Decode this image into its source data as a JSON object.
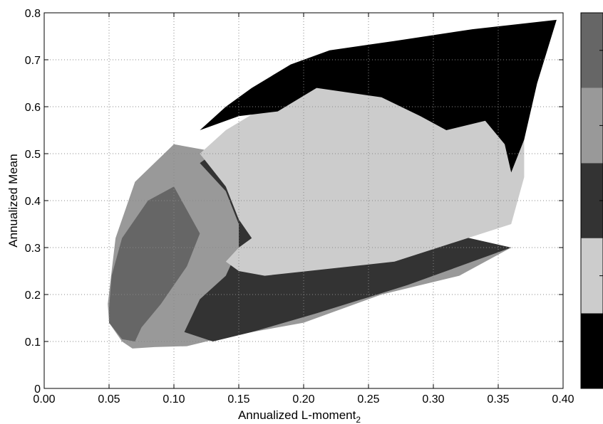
{
  "chart_data": {
    "type": "area",
    "xlabel": "Annualized L-moment",
    "xlabel_subscript": "2",
    "ylabel": "Annualized Mean",
    "xlim": [
      0.0,
      0.4
    ],
    "ylim": [
      0.0,
      0.8
    ],
    "x_ticks": [
      "0.00",
      "0.05",
      "0.10",
      "0.15",
      "0.20",
      "0.25",
      "0.30",
      "0.35",
      "0.40"
    ],
    "y_ticks": [
      "0",
      "0.1",
      "0.2",
      "0.3",
      "0.4",
      "0.5",
      "0.6",
      "0.7",
      "0.8"
    ],
    "grid": true,
    "colorbar": {
      "position": "right",
      "bands": [
        {
          "level": 1,
          "color": "#000000"
        },
        {
          "level": 2,
          "color": "#cccccc"
        },
        {
          "level": 3,
          "color": "#333333"
        },
        {
          "level": 4,
          "color": "#999999"
        },
        {
          "level": 5,
          "color": "#666666"
        }
      ],
      "tick_labels": [
        "",
        "",
        "",
        "",
        ""
      ]
    },
    "regions": [
      {
        "level": 4,
        "polygon": [
          [
            0.049,
            0.18
          ],
          [
            0.05,
            0.14
          ],
          [
            0.06,
            0.1
          ],
          [
            0.068,
            0.085
          ],
          [
            0.085,
            0.088
          ],
          [
            0.11,
            0.09
          ],
          [
            0.14,
            0.11
          ],
          [
            0.2,
            0.14
          ],
          [
            0.26,
            0.2
          ],
          [
            0.32,
            0.24
          ],
          [
            0.36,
            0.3
          ],
          [
            0.28,
            0.35
          ],
          [
            0.19,
            0.43
          ],
          [
            0.14,
            0.5
          ],
          [
            0.1,
            0.52
          ],
          [
            0.07,
            0.44
          ],
          [
            0.055,
            0.32
          ]
        ]
      },
      {
        "level": 5,
        "polygon": [
          [
            0.05,
            0.17
          ],
          [
            0.05,
            0.14
          ],
          [
            0.06,
            0.105
          ],
          [
            0.07,
            0.1
          ],
          [
            0.075,
            0.13
          ],
          [
            0.09,
            0.18
          ],
          [
            0.1,
            0.22
          ],
          [
            0.11,
            0.26
          ],
          [
            0.12,
            0.33
          ],
          [
            0.1,
            0.43
          ],
          [
            0.08,
            0.4
          ],
          [
            0.06,
            0.32
          ],
          [
            0.052,
            0.24
          ]
        ]
      },
      {
        "level": 3,
        "polygon": [
          [
            0.108,
            0.12
          ],
          [
            0.13,
            0.1
          ],
          [
            0.16,
            0.12
          ],
          [
            0.21,
            0.16
          ],
          [
            0.28,
            0.22
          ],
          [
            0.36,
            0.3
          ],
          [
            0.28,
            0.35
          ],
          [
            0.16,
            0.45
          ],
          [
            0.13,
            0.5
          ],
          [
            0.12,
            0.48
          ],
          [
            0.14,
            0.42
          ],
          [
            0.15,
            0.35
          ],
          [
            0.15,
            0.3
          ],
          [
            0.14,
            0.24
          ],
          [
            0.12,
            0.19
          ]
        ]
      },
      {
        "level": 2,
        "polygon": [
          [
            0.17,
            0.24
          ],
          [
            0.27,
            0.27
          ],
          [
            0.36,
            0.35
          ],
          [
            0.37,
            0.45
          ],
          [
            0.37,
            0.55
          ],
          [
            0.36,
            0.58
          ],
          [
            0.32,
            0.6
          ],
          [
            0.28,
            0.62
          ],
          [
            0.2,
            0.66
          ],
          [
            0.17,
            0.6
          ],
          [
            0.14,
            0.55
          ],
          [
            0.12,
            0.5
          ],
          [
            0.14,
            0.43
          ],
          [
            0.15,
            0.36
          ],
          [
            0.16,
            0.32
          ],
          [
            0.15,
            0.3
          ],
          [
            0.14,
            0.27
          ],
          [
            0.15,
            0.25
          ]
        ]
      },
      {
        "level": 1,
        "polygon": [
          [
            0.12,
            0.55
          ],
          [
            0.14,
            0.6
          ],
          [
            0.16,
            0.64
          ],
          [
            0.19,
            0.69
          ],
          [
            0.22,
            0.72
          ],
          [
            0.27,
            0.74
          ],
          [
            0.33,
            0.765
          ],
          [
            0.395,
            0.785
          ],
          [
            0.38,
            0.65
          ],
          [
            0.37,
            0.53
          ],
          [
            0.36,
            0.46
          ],
          [
            0.355,
            0.52
          ],
          [
            0.34,
            0.57
          ],
          [
            0.31,
            0.55
          ],
          [
            0.29,
            0.58
          ],
          [
            0.26,
            0.62
          ],
          [
            0.21,
            0.64
          ],
          [
            0.18,
            0.59
          ],
          [
            0.15,
            0.58
          ]
        ]
      }
    ]
  }
}
